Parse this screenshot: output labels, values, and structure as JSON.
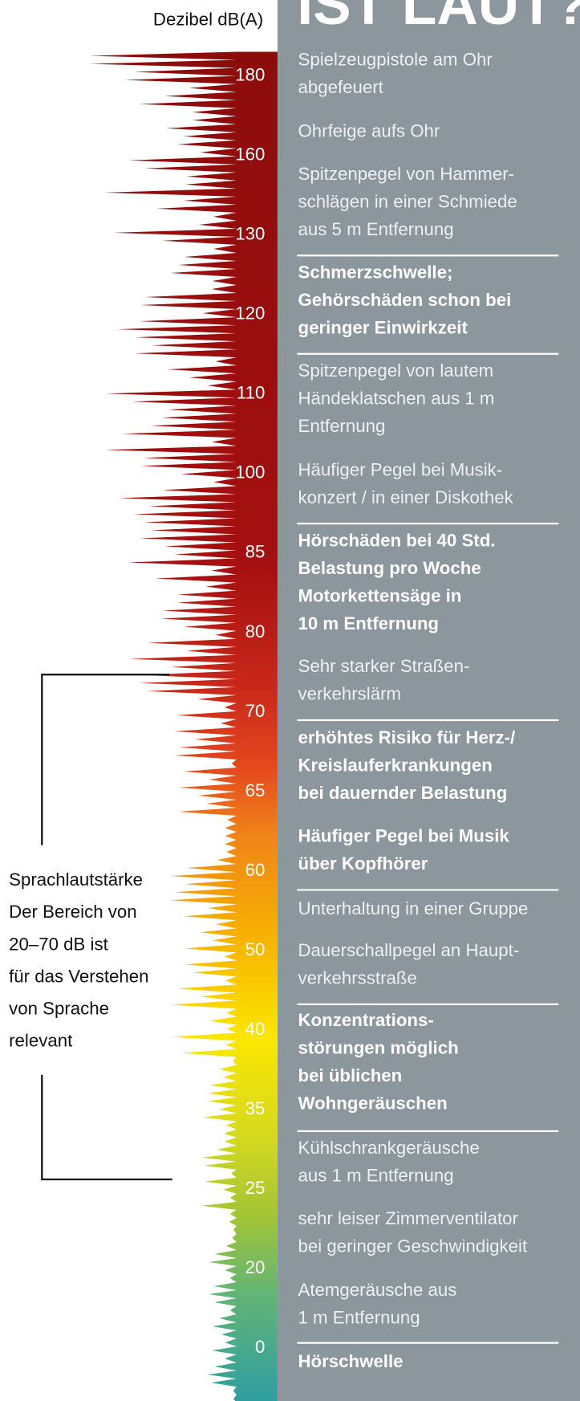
{
  "header": {
    "title": "IST LAUT?",
    "scale_label": "Dezibel dB(A)"
  },
  "scale": [
    "180",
    "160",
    "130",
    "120",
    "110",
    "100",
    "85",
    "80",
    "70",
    "65",
    "60",
    "50",
    "40",
    "35",
    "25",
    "20",
    "0"
  ],
  "items": [
    {
      "lines": [
        "Spielzeugpistole am Ohr",
        "abgefeuert"
      ]
    },
    {
      "lines": [
        "Ohrfeige aufs Ohr"
      ]
    },
    {
      "lines": [
        "Spitzenpegel von Hammer-",
        "schlägen in einer Schmiede",
        "aus 5 m Entfernung"
      ]
    },
    {
      "lines": [
        "Schmerzschwelle;",
        "Gehörschäden schon bei",
        "geringer Einwirkzeit"
      ],
      "bold": true
    },
    {
      "lines": [
        "Spitzenpegel von lautem",
        "Händeklatschen aus 1 m",
        "Entfernung"
      ]
    },
    {
      "lines": [
        "Häufiger Pegel bei Musik-",
        "konzert / in einer Diskothek"
      ]
    },
    {
      "lines": [
        "Hörschäden bei 40 Std.",
        "Belastung pro Woche",
        "Motorkettensäge in",
        "10 m Entfernung"
      ],
      "bold": true
    },
    {
      "lines": [
        "Sehr starker Straßen-",
        "verkehrslärm"
      ]
    },
    {
      "lines": [
        "erhöhtes Risiko für Herz-/",
        "Kreislauferkrankungen",
        "bei dauernder Belastung"
      ],
      "bold": true
    },
    {
      "lines": [
        "Häufiger Pegel bei Musik",
        "über Kopfhörer"
      ],
      "bold": true
    },
    {
      "lines": [
        "Unterhaltung in einer Gruppe"
      ]
    },
    {
      "lines": [
        "Dauerschallpegel an Haupt-",
        "verkehrsstraße"
      ]
    },
    {
      "lines": [
        "Konzentrations-",
        "störungen möglich",
        "bei üblichen",
        "Wohngeräuschen"
      ],
      "bold": true
    },
    {
      "lines": [
        "Kühlschrankgeräusche",
        "aus 1 m Entfernung"
      ]
    },
    {
      "lines": [
        "sehr leiser Zimmerventilator",
        "bei geringer Geschwindigkeit"
      ]
    },
    {
      "lines": [
        "Atemgeräusche aus",
        "1 m Entfernung"
      ]
    },
    {
      "lines": [
        "Hörschwelle"
      ],
      "bold": true
    }
  ],
  "side_note": [
    "Sprachlautstärke",
    "Der Bereich von",
    "20–70 dB ist",
    "für das Verstehen",
    "von Sprache",
    "relevant"
  ]
}
